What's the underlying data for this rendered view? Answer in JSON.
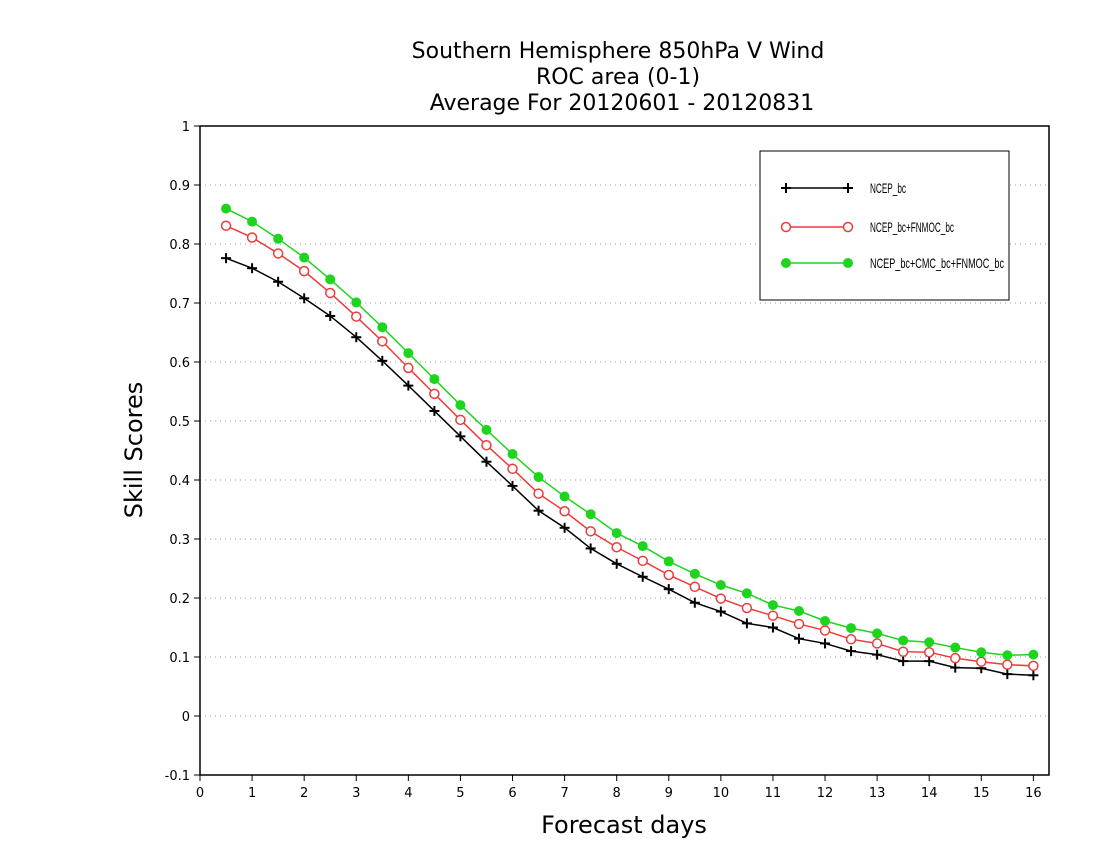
{
  "chart_data": {
    "type": "line",
    "title_lines": [
      "Southern Hemisphere 850hPa V Wind",
      "ROC area (0-1)",
      "Average For 20120601 - 20120831"
    ],
    "xlabel": "Forecast days",
    "ylabel": "Skill Scores",
    "xlim": [
      0,
      16.3
    ],
    "ylim": [
      -0.1,
      1
    ],
    "x_ticks": [
      0,
      1,
      2,
      3,
      4,
      5,
      6,
      7,
      8,
      9,
      10,
      11,
      12,
      13,
      14,
      15,
      16
    ],
    "y_ticks": [
      -0.1,
      0,
      0.1,
      0.2,
      0.3,
      0.4,
      0.5,
      0.6,
      0.7,
      0.8,
      0.9,
      1
    ],
    "y_tick_labels": [
      "-0.1",
      "0",
      "0.1",
      "0.2",
      "0.3",
      "0.4",
      "0.5",
      "0.6",
      "0.7",
      "0.8",
      "0.9",
      "1"
    ],
    "grid": "horizontal dotted",
    "legend_position": "top-right",
    "x": [
      0.5,
      1,
      1.5,
      2,
      2.5,
      3,
      3.5,
      4,
      4.5,
      5,
      5.5,
      6,
      6.5,
      7,
      7.5,
      8,
      8.5,
      9,
      9.5,
      10,
      10.5,
      11,
      11.5,
      12,
      12.5,
      13,
      13.5,
      14,
      14.5,
      15,
      15.5,
      16
    ],
    "series": [
      {
        "name": "NCEP_bc",
        "color": "#000000",
        "marker": "plus",
        "values": [
          0.776,
          0.759,
          0.736,
          0.708,
          0.678,
          0.642,
          0.602,
          0.56,
          0.517,
          0.474,
          0.431,
          0.39,
          0.348,
          0.319,
          0.284,
          0.258,
          0.236,
          0.215,
          0.192,
          0.177,
          0.157,
          0.15,
          0.131,
          0.123,
          0.11,
          0.104,
          0.093,
          0.093,
          0.082,
          0.081,
          0.071,
          0.069
        ]
      },
      {
        "name": "NCEP_bc+FNMOC_bc",
        "color": "#ee3b3b",
        "marker": "open-circle",
        "values": [
          0.831,
          0.811,
          0.784,
          0.754,
          0.717,
          0.677,
          0.635,
          0.59,
          0.546,
          0.502,
          0.459,
          0.419,
          0.377,
          0.347,
          0.313,
          0.286,
          0.263,
          0.239,
          0.219,
          0.199,
          0.183,
          0.17,
          0.156,
          0.145,
          0.13,
          0.123,
          0.109,
          0.108,
          0.098,
          0.092,
          0.087,
          0.085
        ]
      },
      {
        "name": "NCEP_bc+CMC_bc+FNMOC_bc",
        "color": "#1ed41e",
        "marker": "filled-circle",
        "values": [
          0.86,
          0.838,
          0.809,
          0.777,
          0.74,
          0.701,
          0.659,
          0.615,
          0.571,
          0.527,
          0.485,
          0.444,
          0.405,
          0.372,
          0.342,
          0.31,
          0.288,
          0.262,
          0.241,
          0.222,
          0.208,
          0.188,
          0.178,
          0.161,
          0.149,
          0.14,
          0.128,
          0.125,
          0.116,
          0.108,
          0.103,
          0.104
        ]
      }
    ]
  }
}
